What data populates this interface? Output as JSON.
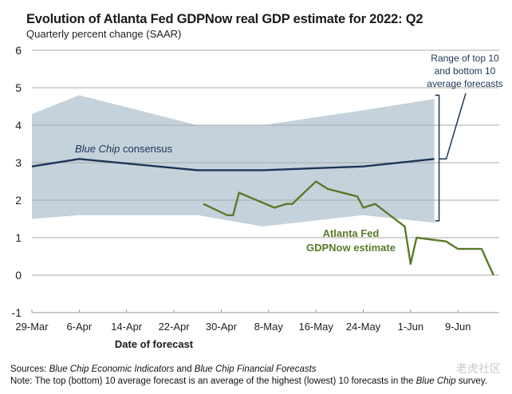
{
  "chart_data": {
    "type": "line",
    "title": "Evolution of Atlanta Fed GDPNow real GDP estimate for 2022: Q2",
    "subtitle": "Quarterly percent change (SAAR)",
    "xlabel": "Date of forecast",
    "ylabel": "",
    "ylim": [
      -1,
      6
    ],
    "yticks": [
      -1,
      0,
      1,
      2,
      3,
      4,
      5,
      6
    ],
    "ytick_labels": [
      "-1",
      "0",
      "1",
      "2",
      "3",
      "4",
      "5",
      "6"
    ],
    "x_origin_date": "29-Mar",
    "xlim_days": [
      0,
      79
    ],
    "xticks_days": [
      0,
      8,
      16,
      24,
      32,
      40,
      48,
      56,
      64,
      72
    ],
    "xtick_labels": [
      "29-Mar",
      "6-Apr",
      "14-Apr",
      "22-Apr",
      "30-Apr",
      "8-May",
      "16-May",
      "24-May",
      "1-Jun",
      "9-Jun"
    ],
    "grid": true,
    "band": {
      "name": "Range of top 10 and bottom 10 average forecasts",
      "x_days": [
        0,
        8,
        28,
        39,
        56,
        68
      ],
      "upper": [
        4.3,
        4.8,
        4.0,
        4.0,
        4.4,
        4.7
      ],
      "lower": [
        1.5,
        1.6,
        1.6,
        1.3,
        1.6,
        1.4
      ],
      "color": "#c5d2dc"
    },
    "series": [
      {
        "name": "Blue Chip consensus",
        "x_days": [
          0,
          8,
          28,
          39,
          56,
          68
        ],
        "values": [
          2.9,
          3.1,
          2.8,
          2.8,
          2.9,
          3.1
        ],
        "color": "#1d3557"
      },
      {
        "name": "Atlanta Fed GDPNow estimate",
        "x_days": [
          29,
          33,
          34,
          35,
          41,
          43,
          44,
          48,
          50,
          55,
          56,
          58,
          63,
          64,
          65,
          70,
          72,
          76,
          78
        ],
        "values": [
          1.9,
          1.6,
          1.6,
          2.2,
          1.8,
          1.9,
          1.9,
          2.5,
          2.3,
          2.1,
          1.8,
          1.9,
          1.3,
          0.3,
          1.0,
          0.9,
          0.7,
          0.7,
          0.0
        ],
        "color": "#5b7a2a"
      }
    ],
    "annotations": {
      "consensus_label_italic": "Blue Chip",
      "consensus_label_rest": " consensus",
      "range_label_lines": [
        "Range of top 10",
        "and bottom 10",
        "average forecasts"
      ],
      "gdpnow_label_lines": [
        "Atlanta Fed",
        "GDPNow estimate"
      ]
    }
  },
  "footer": {
    "sources_label": "Sources:",
    "sources_italic_1": "Blue Chip Economic Indicators",
    "sources_and": " and ",
    "sources_italic_2": "Blue Chip Financial Forecasts",
    "note_label": "Note:",
    "note_text": " The top (bottom) 10 average forecast is an average of the highest (lowest) 10 forecasts in the ",
    "note_italic": "Blue Chip",
    "note_end": " survey."
  },
  "watermark": "老虎社区"
}
